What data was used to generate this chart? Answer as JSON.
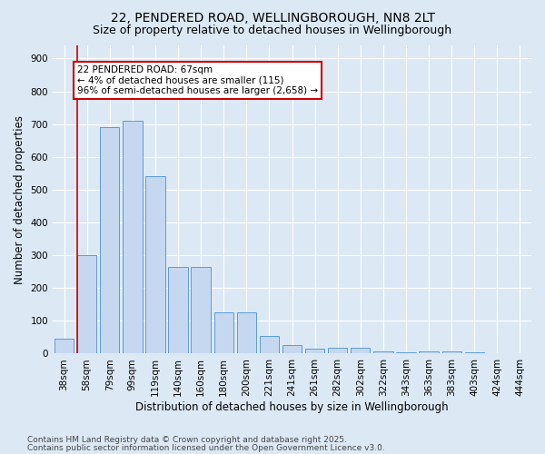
{
  "title_line1": "22, PENDERED ROAD, WELLINGBOROUGH, NN8 2LT",
  "title_line2": "Size of property relative to detached houses in Wellingborough",
  "xlabel": "Distribution of detached houses by size in Wellingborough",
  "ylabel": "Number of detached properties",
  "categories": [
    "38sqm",
    "58sqm",
    "79sqm",
    "99sqm",
    "119sqm",
    "140sqm",
    "160sqm",
    "180sqm",
    "200sqm",
    "221sqm",
    "241sqm",
    "261sqm",
    "282sqm",
    "302sqm",
    "322sqm",
    "343sqm",
    "363sqm",
    "383sqm",
    "403sqm",
    "424sqm",
    "444sqm"
  ],
  "values": [
    45,
    300,
    690,
    710,
    540,
    265,
    265,
    125,
    125,
    55,
    25,
    15,
    17,
    17,
    7,
    5,
    8,
    8,
    5,
    2,
    1
  ],
  "bar_color": "#c5d8f0",
  "bar_edge_color": "#5b9bd5",
  "background_color": "#dce9f5",
  "grid_color": "#ffffff",
  "annotation_text": "22 PENDERED ROAD: 67sqm\n← 4% of detached houses are smaller (115)\n96% of semi-detached houses are larger (2,658) →",
  "annotation_box_color": "#ffffff",
  "annotation_box_edge": "#cc0000",
  "footer_line1": "Contains HM Land Registry data © Crown copyright and database right 2025.",
  "footer_line2": "Contains public sector information licensed under the Open Government Licence v3.0.",
  "ylim": [
    0,
    940
  ],
  "yticks": [
    0,
    100,
    200,
    300,
    400,
    500,
    600,
    700,
    800,
    900
  ],
  "title_fontsize": 10,
  "subtitle_fontsize": 9,
  "xlabel_fontsize": 8.5,
  "ylabel_fontsize": 8.5,
  "tick_fontsize": 7.5,
  "footer_fontsize": 6.5,
  "annot_fontsize": 7.5
}
